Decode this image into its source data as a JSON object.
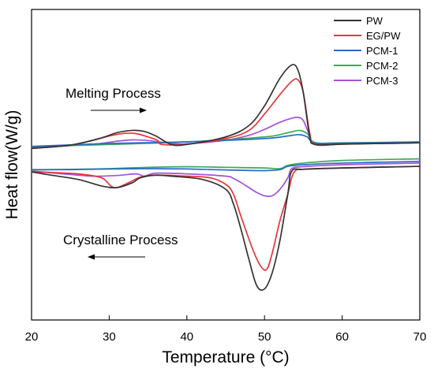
{
  "chart_data": {
    "type": "line",
    "xlabel": "Temperature (°C)",
    "ylabel": "Heat flow(W/g)",
    "xlim": [
      20,
      70
    ],
    "xticks": [
      20,
      30,
      40,
      50,
      60,
      70
    ],
    "y_ticks_shown": false,
    "grid": false,
    "legend_position": "top-right",
    "annotations": [
      {
        "text": "Melting Process",
        "arrow_direction": "right"
      },
      {
        "text": "Crystalline Process",
        "arrow_direction": "left"
      }
    ],
    "series": [
      {
        "name": "PW",
        "color": "#333333",
        "heating": {
          "x": [
            20,
            25,
            29,
            31,
            33,
            34.5,
            36,
            38,
            40,
            45,
            48,
            50,
            52,
            53.5,
            54.3,
            55,
            55.8,
            56.5,
            60,
            65,
            70
          ],
          "y": [
            -0.1,
            0.0,
            0.22,
            0.38,
            0.45,
            0.42,
            0.28,
            0.02,
            0.02,
            0.25,
            0.6,
            1.2,
            2.05,
            2.45,
            2.3,
            1.6,
            0.3,
            0.02,
            0.03,
            0.05,
            0.07
          ]
        },
        "cooling": {
          "x": [
            70,
            60,
            55,
            53.5,
            53,
            52,
            51,
            50,
            49,
            48,
            47,
            46,
            45,
            42,
            38,
            36,
            34,
            33,
            31,
            29,
            26,
            22,
            20
          ],
          "y": [
            -0.65,
            -0.7,
            -0.74,
            -0.8,
            -1.5,
            -2.9,
            -3.9,
            -4.4,
            -4.3,
            -3.5,
            -2.6,
            -1.8,
            -1.35,
            -1.05,
            -0.95,
            -0.92,
            -1.0,
            -1.15,
            -1.3,
            -1.25,
            -1.05,
            -0.9,
            -0.82
          ]
        }
      },
      {
        "name": "EG/PW",
        "color": "#e8353a",
        "heating": {
          "x": [
            20,
            25,
            28,
            30,
            32,
            33.5,
            35,
            36.2,
            36.8,
            40,
            45,
            48,
            50,
            52,
            53.5,
            54.3,
            55,
            55.8,
            56.5,
            60,
            65,
            70
          ],
          "y": [
            -0.1,
            0.0,
            0.15,
            0.28,
            0.36,
            0.35,
            0.25,
            0.15,
            0.02,
            0.03,
            0.2,
            0.45,
            0.95,
            1.55,
            1.95,
            2.0,
            1.6,
            0.4,
            0.02,
            0.03,
            0.05,
            0.07
          ]
        },
        "cooling": {
          "x": [
            70,
            60,
            55,
            54,
            53.5,
            53,
            52,
            51,
            50.3,
            49.5,
            48.5,
            47,
            46,
            45,
            43,
            40,
            36,
            34,
            32.5,
            31,
            30.2,
            29,
            26,
            22,
            20
          ],
          "y": [
            -0.65,
            -0.7,
            -0.74,
            -0.78,
            -1.0,
            -1.5,
            -2.3,
            -3.3,
            -3.8,
            -3.7,
            -3.2,
            -2.2,
            -1.5,
            -1.2,
            -1.0,
            -0.95,
            -0.92,
            -0.98,
            -1.15,
            -1.3,
            -1.25,
            -1.0,
            -0.88,
            -0.83,
            -0.8
          ]
        }
      },
      {
        "name": "PCM-1",
        "color": "#2a6ac8",
        "heating": {
          "x": [
            20,
            30,
            40,
            50,
            53,
            54.5,
            55.5,
            56.5,
            60,
            70
          ],
          "y": [
            -0.04,
            0.05,
            0.1,
            0.2,
            0.28,
            0.32,
            0.25,
            0.06,
            0.06,
            0.09
          ]
        },
        "cooling": {
          "x": [
            70,
            60,
            55,
            53,
            52,
            50,
            45,
            40,
            35,
            30,
            25,
            20
          ],
          "y": [
            -0.5,
            -0.55,
            -0.6,
            -0.65,
            -0.75,
            -0.78,
            -0.76,
            -0.73,
            -0.72,
            -0.73,
            -0.75,
            -0.75
          ]
        }
      },
      {
        "name": "PCM-2",
        "color": "#3aaa5a",
        "heating": {
          "x": [
            20,
            30,
            40,
            50,
            53,
            54.5,
            55.5,
            56.5,
            60,
            70
          ],
          "y": [
            -0.05,
            0.02,
            0.1,
            0.25,
            0.38,
            0.45,
            0.35,
            0.08,
            0.07,
            0.1
          ]
        },
        "cooling": {
          "x": [
            70,
            60,
            55,
            53,
            52,
            50,
            45,
            40,
            35,
            30,
            25,
            20
          ],
          "y": [
            -0.42,
            -0.47,
            -0.55,
            -0.62,
            -0.72,
            -0.7,
            -0.68,
            -0.66,
            -0.68,
            -0.72,
            -0.74,
            -0.76
          ]
        }
      },
      {
        "name": "PCM-3",
        "color": "#a552d8",
        "heating": {
          "x": [
            20,
            28,
            31,
            33,
            35,
            38,
            40,
            45,
            48,
            50,
            52,
            53.5,
            54.3,
            55,
            55.8,
            56.5,
            60,
            70
          ],
          "y": [
            -0.08,
            0.03,
            0.12,
            0.16,
            0.14,
            0.05,
            0.04,
            0.15,
            0.3,
            0.48,
            0.7,
            0.82,
            0.85,
            0.75,
            0.3,
            0.05,
            0.05,
            0.08
          ]
        },
        "cooling": {
          "x": [
            70,
            60,
            55,
            53.5,
            53,
            52,
            51,
            50,
            49,
            48,
            47,
            46,
            45,
            40,
            36,
            34.5,
            33.5,
            31,
            28,
            25,
            22,
            20
          ],
          "y": [
            -0.55,
            -0.6,
            -0.66,
            -0.72,
            -1.0,
            -1.35,
            -1.55,
            -1.55,
            -1.45,
            -1.3,
            -1.15,
            -1.02,
            -0.95,
            -0.88,
            -0.86,
            -0.95,
            -0.88,
            -0.93,
            -0.95,
            -0.9,
            -0.84,
            -0.82
          ]
        }
      }
    ]
  }
}
